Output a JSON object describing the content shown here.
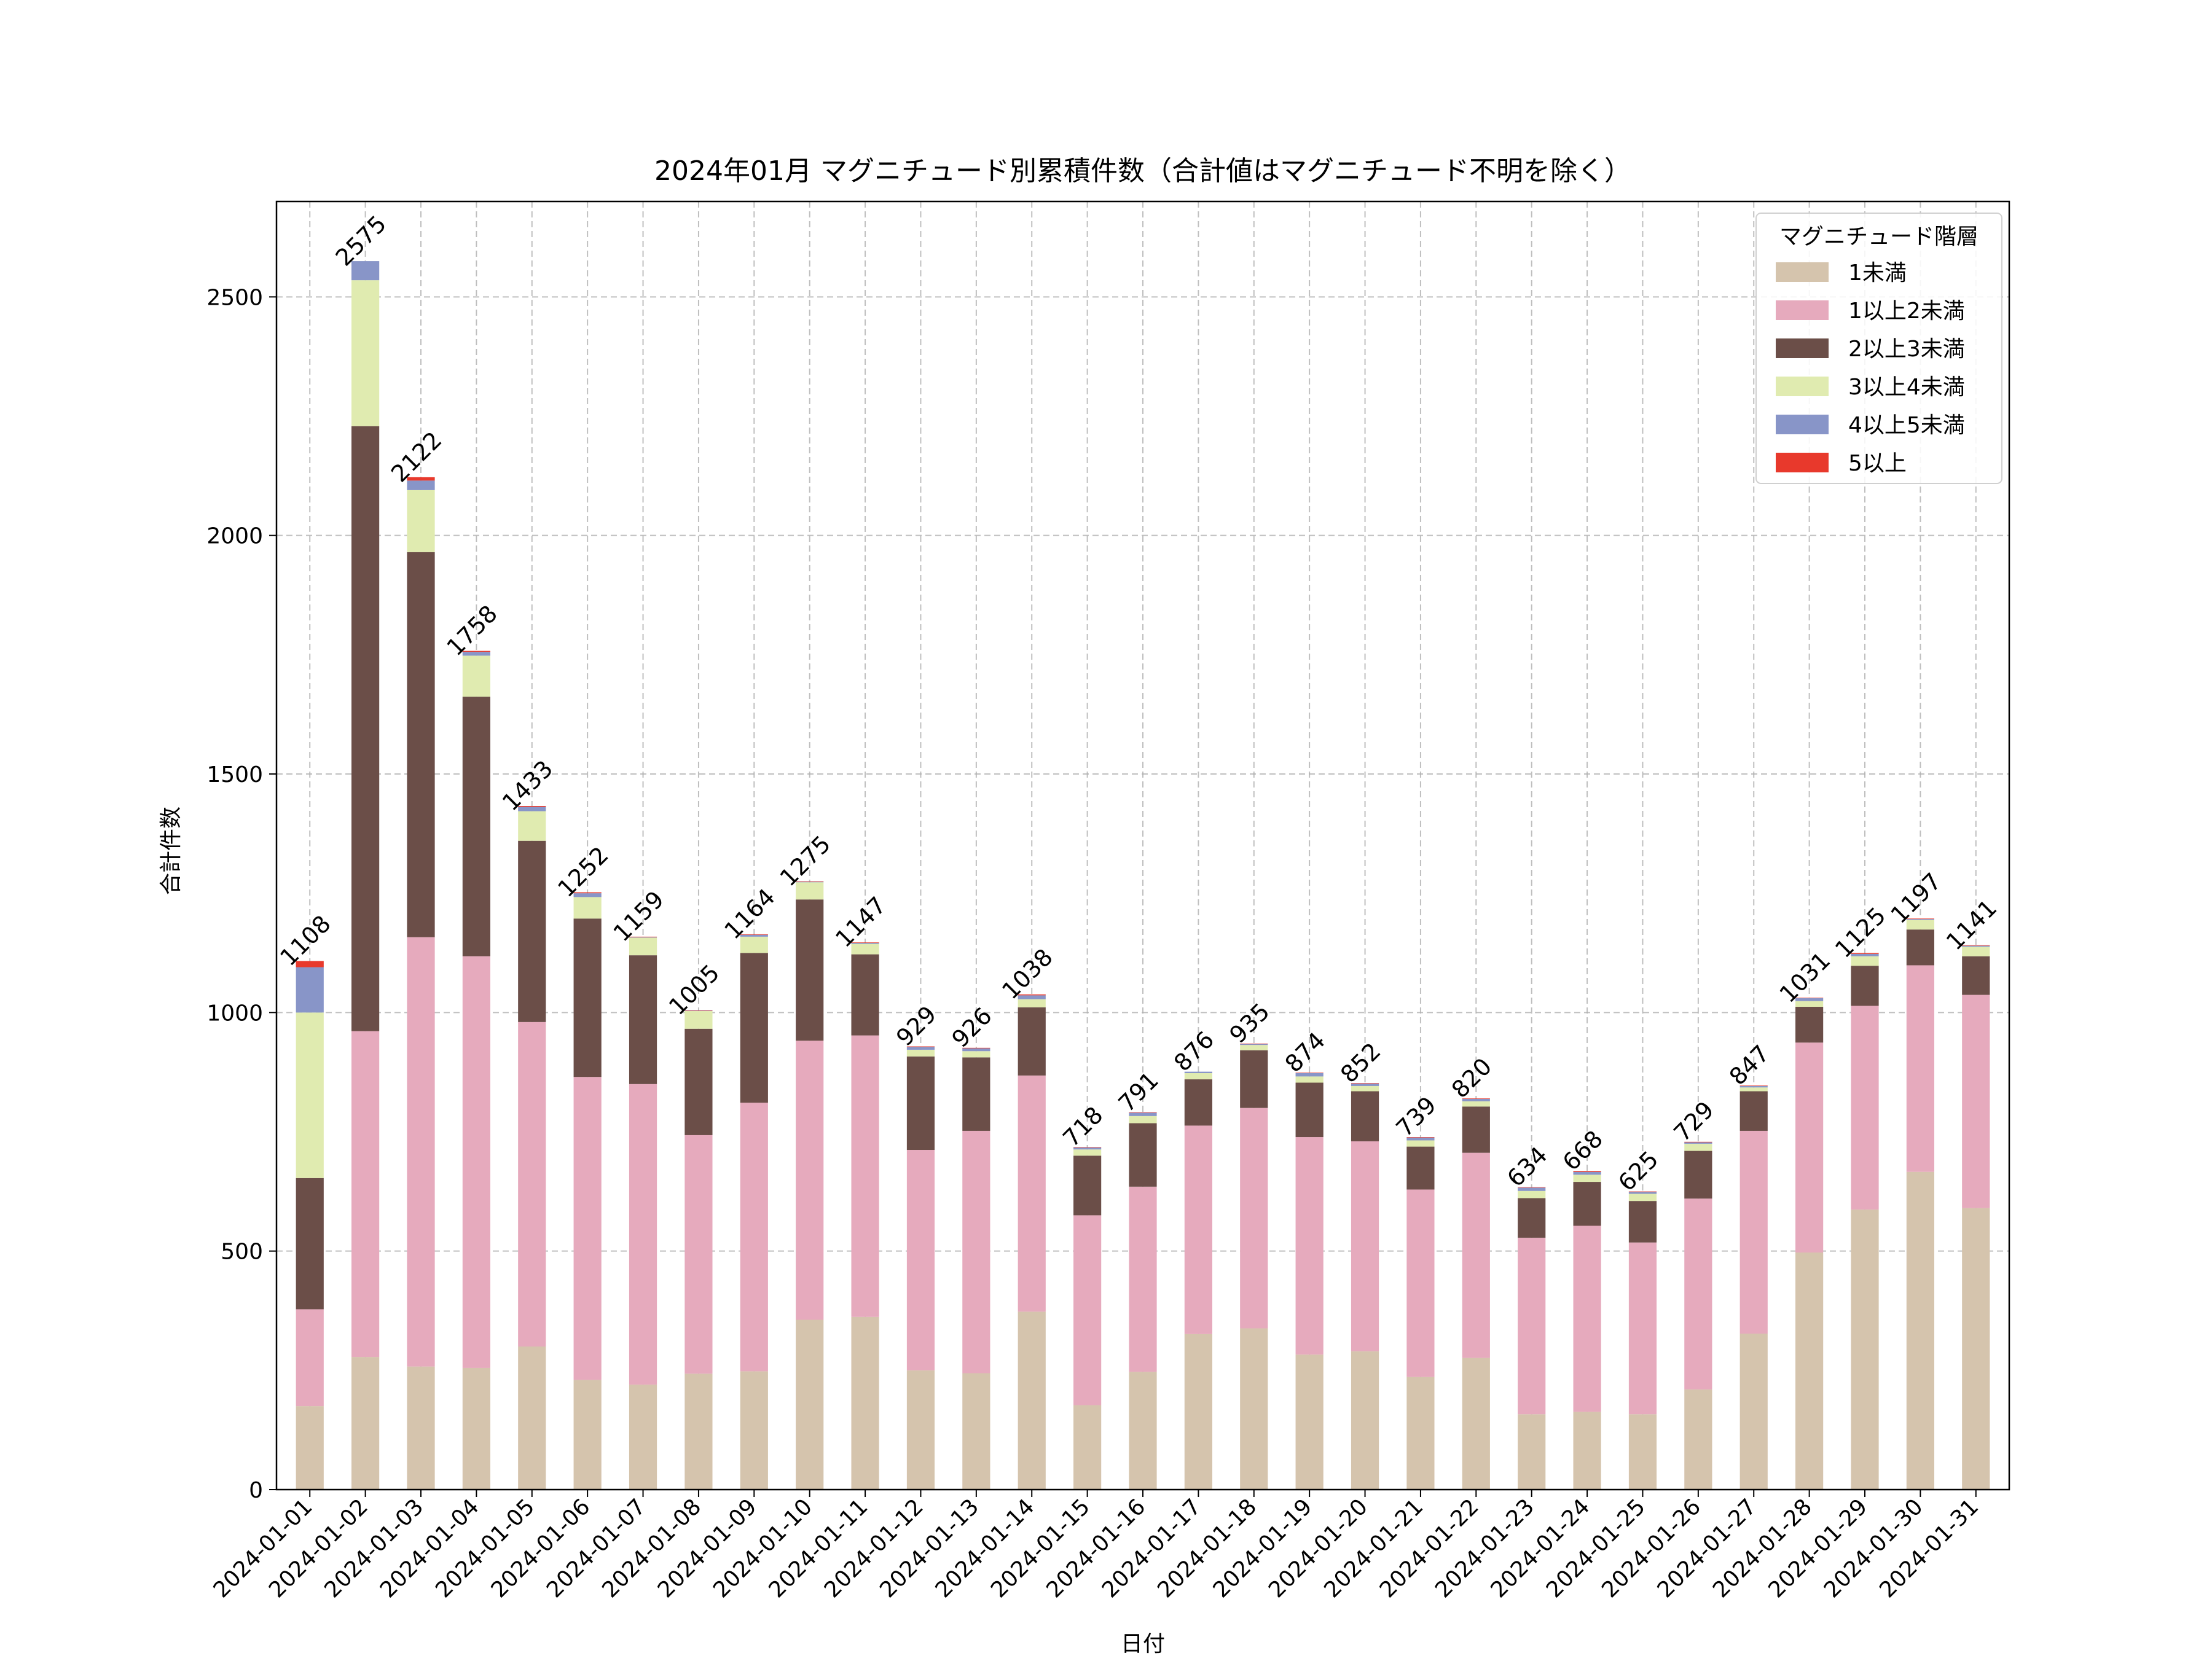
{
  "chart_data": {
    "type": "bar",
    "stacked": true,
    "title": "2024年01月 マグニチュード別累積件数（合計値はマグニチュード不明を除く）",
    "xlabel": "日付",
    "ylabel": "合計件数",
    "ylim": [
      0,
      2700
    ],
    "yticks": [
      0,
      500,
      1000,
      1500,
      2000,
      2500
    ],
    "grid": true,
    "legend_title": "マグニチュード階層",
    "legend_position": "top-right",
    "categories": [
      "2024-01-01",
      "2024-01-02",
      "2024-01-03",
      "2024-01-04",
      "2024-01-05",
      "2024-01-06",
      "2024-01-07",
      "2024-01-08",
      "2024-01-09",
      "2024-01-10",
      "2024-01-11",
      "2024-01-12",
      "2024-01-13",
      "2024-01-14",
      "2024-01-15",
      "2024-01-16",
      "2024-01-17",
      "2024-01-18",
      "2024-01-19",
      "2024-01-20",
      "2024-01-21",
      "2024-01-22",
      "2024-01-23",
      "2024-01-24",
      "2024-01-25",
      "2024-01-26",
      "2024-01-27",
      "2024-01-28",
      "2024-01-29",
      "2024-01-30",
      "2024-01-31"
    ],
    "totals": [
      1108,
      2575,
      2122,
      1758,
      1433,
      1252,
      1159,
      1005,
      1164,
      1275,
      1147,
      929,
      926,
      1038,
      718,
      791,
      876,
      935,
      874,
      852,
      739,
      820,
      634,
      668,
      625,
      729,
      847,
      1031,
      1125,
      1197,
      1141
    ],
    "series": [
      {
        "name": "1未満",
        "color": "#d5c4ad",
        "values": [
          175,
          278,
          258,
          255,
          300,
          230,
          220,
          243,
          248,
          356,
          362,
          250,
          244,
          373,
          177,
          247,
          326,
          338,
          283,
          290,
          236,
          276,
          158,
          163,
          158,
          210,
          327,
          497,
          587,
          666,
          590
        ]
      },
      {
        "name": "1以上2未満",
        "color": "#e6aabd",
        "values": [
          203,
          683,
          900,
          863,
          680,
          635,
          630,
          500,
          563,
          585,
          590,
          462,
          508,
          495,
          398,
          388,
          437,
          462,
          456,
          440,
          393,
          430,
          370,
          390,
          360,
          400,
          425,
          440,
          427,
          433,
          447
        ]
      },
      {
        "name": "2以上3未満",
        "color": "#6b4e48",
        "values": [
          275,
          1268,
          807,
          544,
          380,
          332,
          270,
          223,
          314,
          296,
          170,
          196,
          154,
          143,
          125,
          133,
          97,
          121,
          114,
          105,
          90,
          97,
          83,
          92,
          87,
          100,
          83,
          75,
          84,
          75,
          81
        ]
      },
      {
        "name": "3以上4未満",
        "color": "#e0ebb0",
        "values": [
          347,
          306,
          130,
          86,
          62,
          45,
          37,
          37,
          34,
          36,
          22,
          14,
          13,
          17,
          13,
          15,
          13,
          11,
          13,
          11,
          13,
          11,
          15,
          15,
          15,
          15,
          8,
          12,
          20,
          20,
          20
        ]
      },
      {
        "name": "4以上5未満",
        "color": "#8895c8",
        "values": [
          95,
          40,
          20,
          8,
          9,
          8,
          1,
          1,
          4,
          1,
          2,
          6,
          6,
          8,
          4,
          7,
          3,
          2,
          7,
          5,
          6,
          5,
          7,
          6,
          4,
          3,
          3,
          6,
          5,
          2,
          2
        ]
      },
      {
        "name": "5以上",
        "color": "#e8392c",
        "values": [
          13,
          0,
          7,
          2,
          2,
          2,
          1,
          1,
          1,
          1,
          1,
          1,
          1,
          2,
          1,
          1,
          0,
          1,
          1,
          1,
          1,
          1,
          1,
          2,
          1,
          1,
          1,
          1,
          2,
          1,
          1
        ]
      }
    ]
  }
}
